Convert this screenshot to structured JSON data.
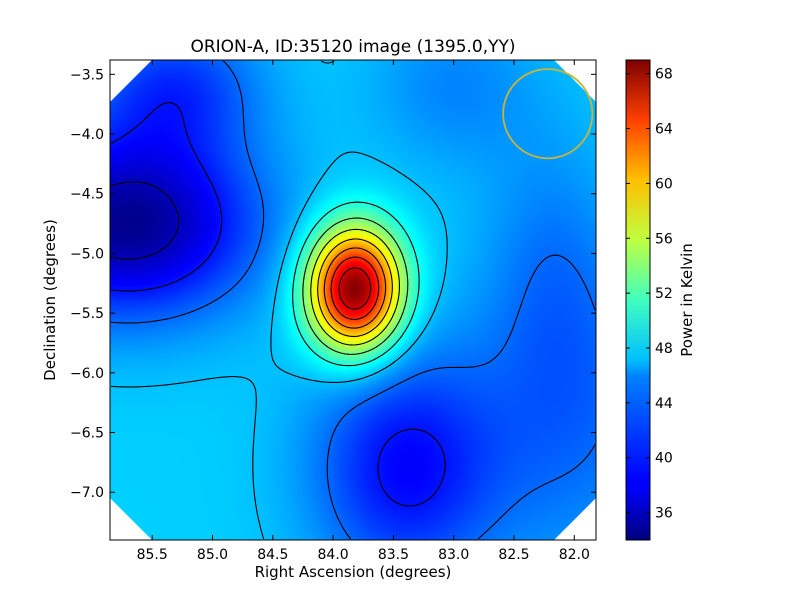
{
  "chart_data": {
    "type": "heatmap",
    "title": "ORION-A, ID:35120 image (1395.0,YY)",
    "xlabel": "Right Ascension (degrees)",
    "ylabel": "Declination (degrees)",
    "xlim": [
      85.85,
      81.82
    ],
    "ylim": [
      -7.4,
      -3.38
    ],
    "xticks": [
      85.5,
      85.0,
      84.5,
      84.0,
      83.5,
      83.0,
      82.5,
      82.0
    ],
    "xtick_labels": [
      "85.5",
      "85.0",
      "84.5",
      "84.0",
      "83.5",
      "83.0",
      "82.5",
      "82.0"
    ],
    "yticks": [
      -3.5,
      -4.0,
      -4.5,
      -5.0,
      -5.5,
      -6.0,
      -6.5,
      -7.0
    ],
    "ytick_labels": [
      "−3.5",
      "−4.0",
      "−4.5",
      "−5.0",
      "−5.5",
      "−6.0",
      "−6.5",
      "−7.0"
    ],
    "colorbar": {
      "label": "Power in Kelvin",
      "range": [
        34,
        69
      ],
      "ticks": [
        36,
        40,
        44,
        48,
        52,
        56,
        60,
        64,
        68
      ],
      "tick_labels": [
        "36",
        "40",
        "44",
        "48",
        "52",
        "56",
        "60",
        "64",
        "68"
      ],
      "colormap": "jet"
    },
    "features": {
      "peak": {
        "ra": 83.82,
        "dec": -5.3,
        "value": 68
      },
      "minimum_west": {
        "ra": 85.7,
        "dec": -4.75,
        "value": 35
      },
      "minimum_south": {
        "ra": 83.4,
        "dec": -6.8,
        "value": 38
      },
      "beam_circle": {
        "ra": 82.22,
        "dec": -3.83,
        "radius_deg": 0.37,
        "color": "#c8b43a"
      }
    },
    "contours": true,
    "grid": false
  }
}
